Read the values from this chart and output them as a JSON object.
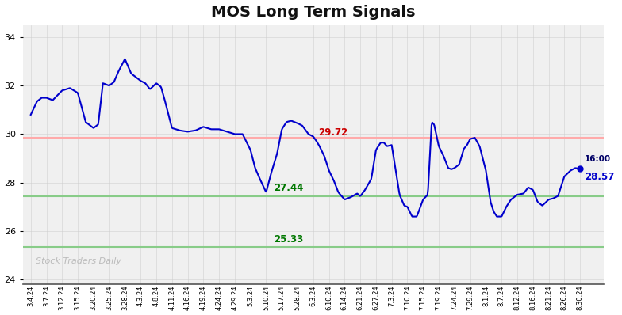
{
  "title": "MOS Long Term Signals",
  "title_fontsize": 14,
  "title_fontweight": "bold",
  "watermark": "Stock Traders Daily",
  "line_color": "#0000cc",
  "line_width": 1.5,
  "background_color": "#ffffff",
  "grid_color": "#cccccc",
  "red_line": 29.85,
  "red_line_color": "#ffaaaa",
  "green_line1": 27.44,
  "green_line1_color": "#88cc88",
  "green_line2": 25.33,
  "green_line2_color": "#88cc88",
  "annotation_29_72_color": "#cc0000",
  "annotation_27_44_color": "#007700",
  "annotation_25_33_color": "#007700",
  "last_price": 28.57,
  "last_time": "16:00",
  "last_dot_color": "#0000cc",
  "ylim": [
    23.8,
    34.5
  ],
  "yticks": [
    24,
    26,
    28,
    30,
    32,
    34
  ],
  "figwidth": 7.84,
  "figheight": 3.98,
  "dpi": 100,
  "x_labels": [
    "3.4.24",
    "3.7.24",
    "3.12.24",
    "3.15.24",
    "3.20.24",
    "3.25.24",
    "3.28.24",
    "4.3.24",
    "4.8.24",
    "4.11.24",
    "4.16.24",
    "4.19.24",
    "4.24.24",
    "4.29.24",
    "5.3.24",
    "5.10.24",
    "5.17.24",
    "5.28.24",
    "6.3.24",
    "6.10.24",
    "6.14.24",
    "6.21.24",
    "6.27.24",
    "7.3.24",
    "7.10.24",
    "7.15.24",
    "7.19.24",
    "7.24.24",
    "7.29.24",
    "8.1.24",
    "8.7.24",
    "8.12.24",
    "8.16.24",
    "8.21.24",
    "8.26.24",
    "8.30.24"
  ],
  "price_points": [
    [
      0,
      30.8
    ],
    [
      0.4,
      31.35
    ],
    [
      0.7,
      31.5
    ],
    [
      1,
      31.5
    ],
    [
      1.4,
      31.4
    ],
    [
      2,
      31.8
    ],
    [
      2.5,
      31.9
    ],
    [
      3,
      31.7
    ],
    [
      3.5,
      30.5
    ],
    [
      4,
      30.25
    ],
    [
      4.3,
      30.4
    ],
    [
      4.6,
      32.1
    ],
    [
      5,
      32.0
    ],
    [
      5.3,
      32.15
    ],
    [
      5.6,
      32.6
    ],
    [
      6,
      33.1
    ],
    [
      6.2,
      32.8
    ],
    [
      6.4,
      32.5
    ],
    [
      7,
      32.2
    ],
    [
      7.3,
      32.1
    ],
    [
      7.6,
      31.85
    ],
    [
      8,
      32.1
    ],
    [
      8.3,
      31.95
    ],
    [
      8.5,
      31.5
    ],
    [
      9,
      30.25
    ],
    [
      9.5,
      30.15
    ],
    [
      10,
      30.1
    ],
    [
      10.5,
      30.15
    ],
    [
      11,
      30.3
    ],
    [
      11.5,
      30.2
    ],
    [
      12,
      30.2
    ],
    [
      12.5,
      30.1
    ],
    [
      13,
      30.0
    ],
    [
      13.5,
      30.0
    ],
    [
      14,
      29.35
    ],
    [
      14.3,
      28.6
    ],
    [
      14.6,
      28.15
    ],
    [
      15,
      27.6
    ],
    [
      15.3,
      28.35
    ],
    [
      15.7,
      29.2
    ],
    [
      16,
      30.2
    ],
    [
      16.3,
      30.5
    ],
    [
      16.6,
      30.55
    ],
    [
      17,
      30.45
    ],
    [
      17.3,
      30.35
    ],
    [
      17.7,
      30.0
    ],
    [
      18,
      29.9
    ],
    [
      18.2,
      29.72
    ],
    [
      18.4,
      29.5
    ],
    [
      18.7,
      29.1
    ],
    [
      19,
      28.5
    ],
    [
      19.3,
      28.1
    ],
    [
      19.6,
      27.6
    ],
    [
      20,
      27.3
    ],
    [
      20.4,
      27.4
    ],
    [
      20.8,
      27.55
    ],
    [
      21,
      27.44
    ],
    [
      21.3,
      27.7
    ],
    [
      21.7,
      28.15
    ],
    [
      22,
      29.35
    ],
    [
      22.3,
      29.65
    ],
    [
      22.5,
      29.65
    ],
    [
      22.7,
      29.5
    ],
    [
      23,
      29.55
    ],
    [
      23.5,
      27.5
    ],
    [
      23.8,
      27.05
    ],
    [
      24,
      27.0
    ],
    [
      24.3,
      26.6
    ],
    [
      24.6,
      26.6
    ],
    [
      25,
      27.3
    ],
    [
      25.3,
      27.5
    ],
    [
      25.55,
      30.5
    ],
    [
      25.7,
      30.4
    ],
    [
      26,
      29.5
    ],
    [
      26.3,
      29.1
    ],
    [
      26.6,
      28.6
    ],
    [
      26.8,
      28.55
    ],
    [
      27,
      28.6
    ],
    [
      27.3,
      28.75
    ],
    [
      27.6,
      29.4
    ],
    [
      27.8,
      29.55
    ],
    [
      28,
      29.8
    ],
    [
      28.3,
      29.85
    ],
    [
      28.6,
      29.5
    ],
    [
      29,
      28.5
    ],
    [
      29.3,
      27.2
    ],
    [
      29.5,
      26.8
    ],
    [
      29.7,
      26.6
    ],
    [
      30,
      26.6
    ],
    [
      30.3,
      27.0
    ],
    [
      30.6,
      27.3
    ],
    [
      31,
      27.5
    ],
    [
      31.4,
      27.55
    ],
    [
      31.7,
      27.8
    ],
    [
      32,
      27.7
    ],
    [
      32.3,
      27.2
    ],
    [
      32.6,
      27.05
    ],
    [
      33,
      27.3
    ],
    [
      33.3,
      27.35
    ],
    [
      33.6,
      27.45
    ],
    [
      34,
      28.25
    ],
    [
      34.4,
      28.5
    ],
    [
      34.7,
      28.6
    ],
    [
      35,
      28.57
    ]
  ]
}
